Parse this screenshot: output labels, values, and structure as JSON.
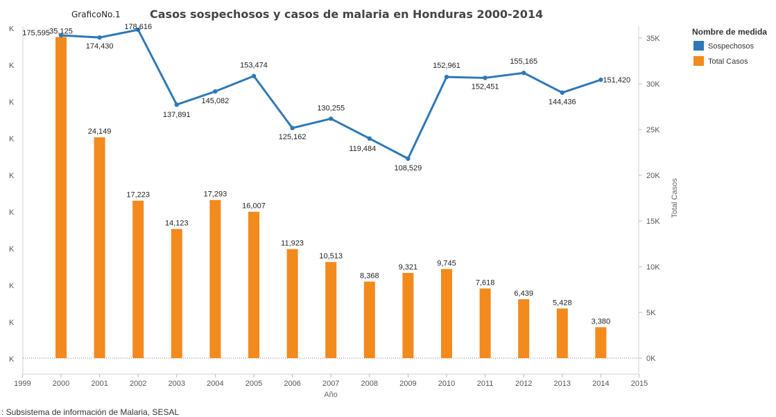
{
  "header": {
    "pre_title": "GraficoNo.1",
    "title": "Casos sospechosos y casos de malaria en Honduras 2000-2014"
  },
  "footer": {
    "source": ": Subsistema de información de Malaria, SESAL"
  },
  "legend": {
    "title": "Nombre de medida",
    "items": [
      {
        "label": "Sospechosos",
        "color": "#2e78b5"
      },
      {
        "label": "Total Casos",
        "color": "#f28a1e"
      }
    ]
  },
  "chart_data": {
    "type": "bar",
    "title": "Casos sospechosos y casos de malaria en Honduras 2000-2014",
    "xlabel": "Año",
    "ylabel_right": "Total Casos",
    "x_ticks": [
      "1999",
      "2000",
      "2001",
      "2002",
      "2003",
      "2004",
      "2005",
      "2006",
      "2007",
      "2008",
      "2009",
      "2010",
      "2011",
      "2012",
      "2013",
      "2014",
      "2015"
    ],
    "left_ticks": [
      "K",
      "K",
      "K",
      "K",
      "K",
      "K",
      "K",
      "K",
      "K",
      "K"
    ],
    "right_ticks": [
      "0K",
      "5K",
      "10K",
      "15K",
      "20K",
      "25K",
      "30K",
      "35K"
    ],
    "right_ylim": [
      0,
      35000
    ],
    "categories": [
      "2000",
      "2001",
      "2002",
      "2003",
      "2004",
      "2005",
      "2006",
      "2007",
      "2008",
      "2009",
      "2010",
      "2011",
      "2012",
      "2013",
      "2014"
    ],
    "series": [
      {
        "name": "Total Casos",
        "type": "bar",
        "color": "#f28a1e",
        "values": [
          35125,
          24149,
          17223,
          14123,
          17293,
          16007,
          11923,
          10513,
          8368,
          9321,
          9745,
          7618,
          6439,
          5428,
          3380
        ],
        "labels": [
          "35,125",
          "24,149",
          "17,223",
          "14,123",
          "17,293",
          "16,007",
          "11,923",
          "10,513",
          "8,368",
          "9,321",
          "9,745",
          "7,618",
          "6,439",
          "5,428",
          "3,380"
        ]
      },
      {
        "name": "Sospechosos",
        "type": "line",
        "color": "#2e78b5",
        "values": [
          175595,
          174430,
          178616,
          137891,
          145082,
          153474,
          125162,
          130255,
          119484,
          108529,
          152961,
          152451,
          155165,
          144436,
          151420
        ],
        "labels": [
          "175,595",
          "174,430",
          "178,616",
          "137,891",
          "145,082",
          "153,474",
          "125,162",
          "130,255",
          "119,484",
          "108,529",
          "152,961",
          "152,451",
          "155,165",
          "144,436",
          "151,420"
        ]
      }
    ],
    "grid": false,
    "legend_position": "top-right"
  }
}
